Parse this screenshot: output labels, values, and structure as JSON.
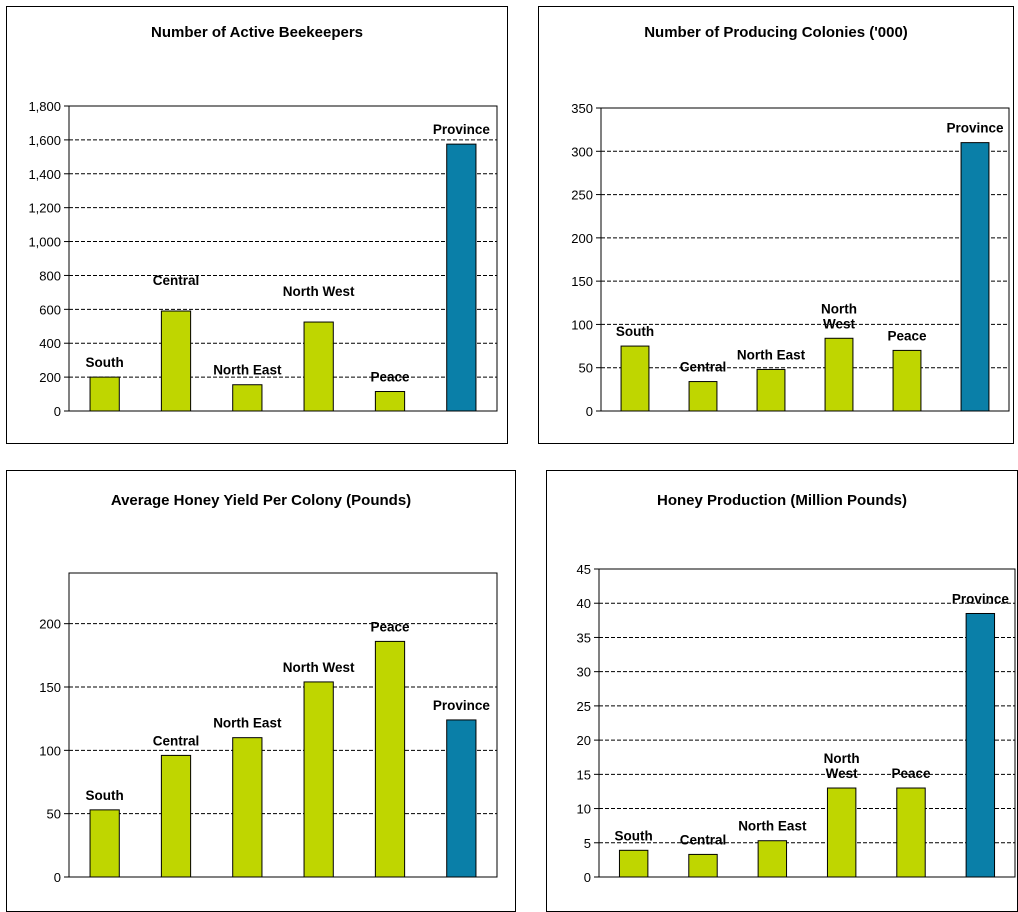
{
  "colors": {
    "region_bar": "#bfd600",
    "province_bar": "#0a7fa8",
    "grid": "#000000"
  },
  "chart_data": [
    {
      "type": "bar",
      "title": "Number of Active Beekeepers",
      "categories": [
        "South",
        "Central",
        "North East",
        "North West",
        "Peace",
        "Province"
      ],
      "values": [
        200,
        590,
        155,
        525,
        115,
        1575
      ],
      "ylim": [
        0,
        1800
      ],
      "yticks": [
        "0",
        "200",
        "400",
        "600",
        "800",
        "1,000",
        "1,200",
        "1,400",
        "1,600",
        "1,800"
      ],
      "grid": true,
      "xlabel": "",
      "ylabel": ""
    },
    {
      "type": "bar",
      "title": "Number of Producing Colonies ('000)",
      "categories": [
        "South",
        "Central",
        "North East",
        "North West",
        "Peace",
        "Province"
      ],
      "values": [
        75,
        34,
        48,
        84,
        70,
        310
      ],
      "ylim": [
        0,
        350
      ],
      "yticks": [
        "0",
        "50",
        "100",
        "150",
        "200",
        "250",
        "300",
        "350"
      ],
      "grid": true,
      "xlabel": "",
      "ylabel": ""
    },
    {
      "type": "bar",
      "title": "Average Honey Yield Per Colony (Pounds)",
      "categories": [
        "South",
        "Central",
        "North East",
        "North West",
        "Peace",
        "Province"
      ],
      "values": [
        53,
        96,
        110,
        154,
        186,
        124
      ],
      "ylim": [
        0,
        240
      ],
      "yticks": [
        "0",
        "50",
        "100",
        "150",
        "200"
      ],
      "grid": true,
      "xlabel": "",
      "ylabel": ""
    },
    {
      "type": "bar",
      "title": "Honey Production (Million Pounds)",
      "categories": [
        "South",
        "Central",
        "North East",
        "North West",
        "Peace",
        "Province"
      ],
      "values": [
        3.9,
        3.3,
        5.3,
        13,
        13,
        38.5
      ],
      "ylim": [
        0,
        45
      ],
      "yticks": [
        "0",
        "5",
        "10",
        "15",
        "20",
        "25",
        "30",
        "35",
        "40",
        "45"
      ],
      "grid": true,
      "xlabel": "",
      "ylabel": ""
    }
  ]
}
